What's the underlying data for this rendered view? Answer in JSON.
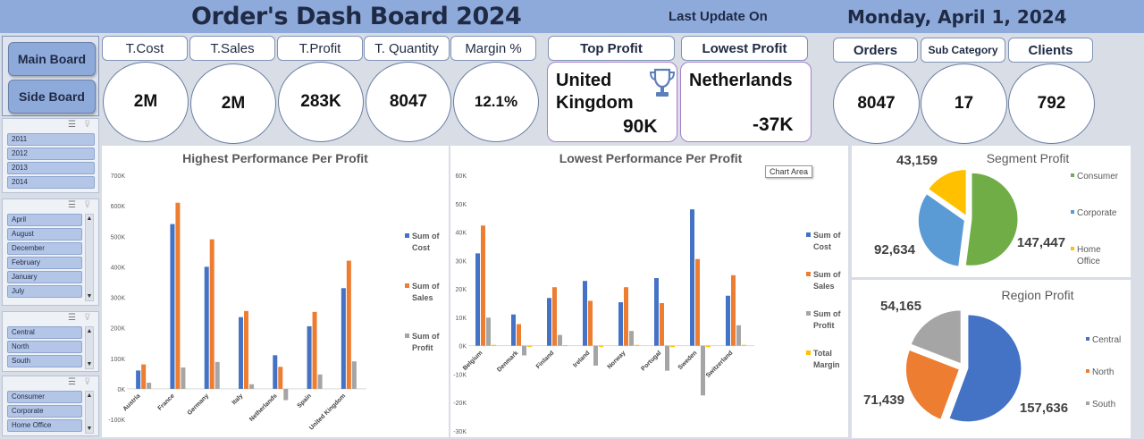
{
  "header": {
    "title": "Order's Dash Board 2024",
    "last_update_label": "Last Update On",
    "date": "Monday, April 1, 2024"
  },
  "nav": {
    "main_board": "Main Board",
    "side_board": "Side Board"
  },
  "slicers": {
    "years": [
      "2011",
      "2012",
      "2013",
      "2014"
    ],
    "months": [
      "April",
      "August",
      "December",
      "February",
      "January",
      "July"
    ],
    "regions": [
      "Central",
      "North",
      "South"
    ],
    "segments": [
      "Consumer",
      "Corporate",
      "Home Office"
    ]
  },
  "kpis": {
    "cost": {
      "label": "T.Cost",
      "value": "2M"
    },
    "sales": {
      "label": "T.Sales",
      "value": "2M"
    },
    "profit": {
      "label": "T.Profit",
      "value": "283K"
    },
    "quantity": {
      "label": "T. Quantity",
      "value": "8047"
    },
    "margin": {
      "label": "Margin %",
      "value": "12.1%"
    },
    "top_profit": {
      "label": "Top Profit",
      "country_line1": "United",
      "country_line2": "Kingdom",
      "value": "90K"
    },
    "lowest_profit": {
      "label": "Lowest Profit",
      "country": "Netherlands",
      "value": "-37K"
    },
    "orders": {
      "label": "Orders",
      "value": "8047"
    },
    "sub_category": {
      "label": "Sub Category",
      "value": "17"
    },
    "clients": {
      "label": "Clients",
      "value": "792"
    }
  },
  "tooltip": "Chart Area",
  "colors": {
    "cost": "#4472c4",
    "sales": "#ed7d31",
    "profit": "#a5a5a5",
    "margin": "#ffc000",
    "consumer": "#70ad47",
    "corporate": "#5b9bd5",
    "home_office": "#ffc000",
    "central": "#4472c4",
    "north": "#ed7d31",
    "south": "#a5a5a5"
  },
  "chart_data": [
    {
      "type": "bar",
      "title": "Highest Performance Per Profit",
      "categories": [
        "Austria",
        "France",
        "Germany",
        "Italy",
        "Netherlands",
        "Spain",
        "United Kingdom"
      ],
      "series": [
        {
          "name": "Sum of Cost",
          "values": [
            60000,
            540000,
            400000,
            235000,
            110000,
            205000,
            330000
          ]
        },
        {
          "name": "Sum of Sales",
          "values": [
            80000,
            610000,
            490000,
            255000,
            72000,
            252000,
            420000
          ]
        },
        {
          "name": "Sum of Profit",
          "values": [
            20000,
            70000,
            88000,
            15000,
            -37000,
            47000,
            90000
          ]
        }
      ],
      "ylim": [
        -100000,
        700000
      ],
      "ytick_labels": [
        "-100K",
        "0K",
        "100K",
        "200K",
        "300K",
        "400K",
        "500K",
        "600K",
        "700K"
      ]
    },
    {
      "type": "bar",
      "title": "Lowest Performance Per Profit",
      "categories": [
        "Belgium",
        "Denmark",
        "Finland",
        "Ireland",
        "Norway",
        "Portugal",
        "Sweden",
        "Switzerland"
      ],
      "series": [
        {
          "name": "Sum of Cost",
          "values": [
            32500,
            11000,
            16800,
            22800,
            15300,
            23800,
            48000,
            17600
          ]
        },
        {
          "name": "Sum of Sales",
          "values": [
            42300,
            7600,
            20600,
            15800,
            20600,
            15000,
            30500,
            24800
          ]
        },
        {
          "name": "Sum of Profit",
          "values": [
            9900,
            -3400,
            3800,
            -7000,
            5200,
            -8800,
            -17500,
            7200
          ]
        },
        {
          "name": "Total Margin",
          "values": [
            300,
            -400,
            200,
            -400,
            300,
            -500,
            -500,
            300
          ]
        }
      ],
      "ylim": [
        -30000,
        60000
      ],
      "ytick_labels": [
        "-30K",
        "-20K",
        "-10K",
        "0K",
        "10K",
        "20K",
        "30K",
        "40K",
        "50K",
        "60K"
      ]
    },
    {
      "type": "pie",
      "title": "Segment Profit",
      "labels": [
        "Consumer",
        "Corporate",
        "Home Office"
      ],
      "values": [
        147447,
        92634,
        43159
      ],
      "value_labels": [
        "147,447",
        "92,634",
        "43,159"
      ]
    },
    {
      "type": "pie",
      "title": "Region Profit",
      "labels": [
        "Central",
        "North",
        "South"
      ],
      "values": [
        157636,
        71439,
        54165
      ],
      "value_labels": [
        "157,636",
        "71,439",
        "54,165"
      ]
    }
  ]
}
